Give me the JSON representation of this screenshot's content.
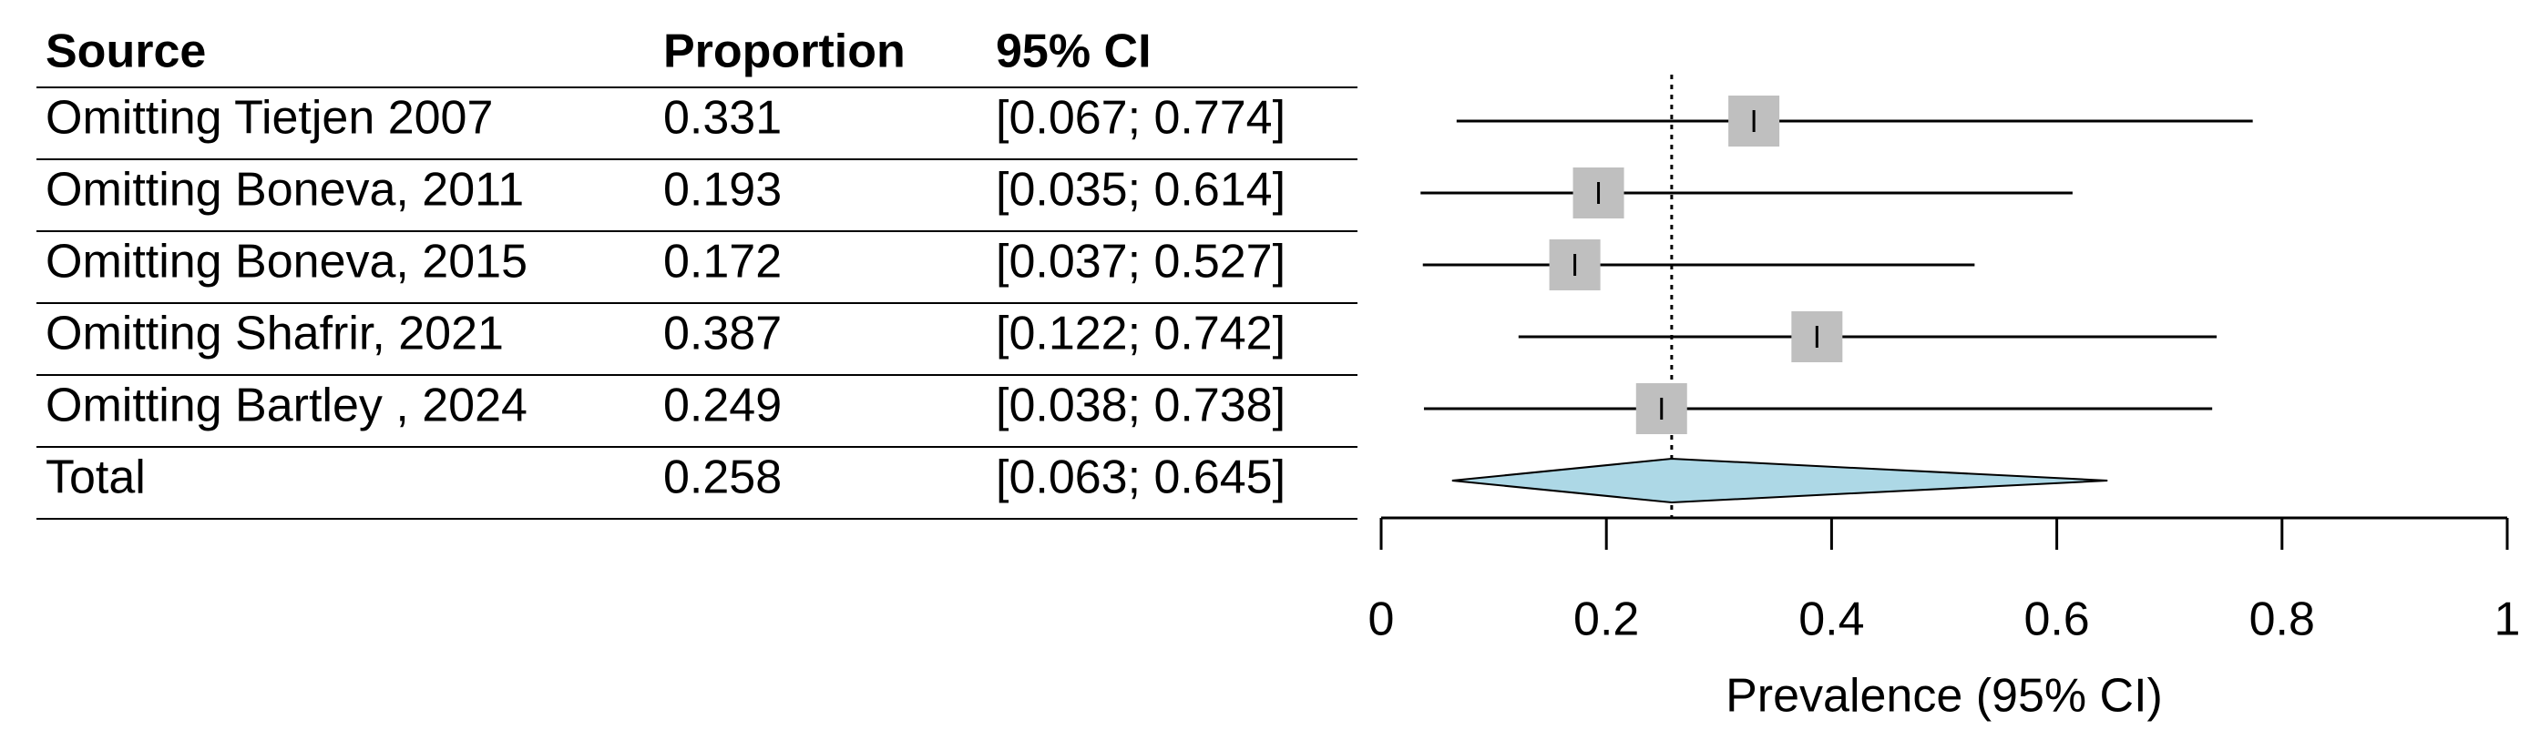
{
  "chart_data": {
    "type": "forest",
    "headers": [
      "Source",
      "Proportion",
      "95% CI"
    ],
    "categories": [
      "Omitting Tietjen 2007",
      "Omitting Boneva, 2011",
      "Omitting Boneva, 2015",
      "Omitting Shafrir, 2021",
      "Omitting Bartley , 2024"
    ],
    "values": [
      0.331,
      0.193,
      0.172,
      0.387,
      0.249
    ],
    "lower": [
      0.067,
      0.035,
      0.037,
      0.122,
      0.038
    ],
    "upper": [
      0.774,
      0.614,
      0.527,
      0.742,
      0.738
    ],
    "ci_labels": [
      "[0.067; 0.774]",
      "[0.035; 0.614]",
      "[0.037; 0.527]",
      "[0.122; 0.742]",
      "[0.038; 0.738]"
    ],
    "summary": {
      "name": "Total",
      "value": 0.258,
      "lower": 0.063,
      "upper": 0.645,
      "ci_label": "[0.063; 0.645]"
    },
    "square_color": "#bfbfbf",
    "diamond_color": "#add8e6",
    "xlabel": "Prevalence (95% CI)",
    "xlim": [
      0,
      1
    ],
    "xticks": [
      0,
      0.2,
      0.4,
      0.6,
      0.8,
      1
    ]
  }
}
